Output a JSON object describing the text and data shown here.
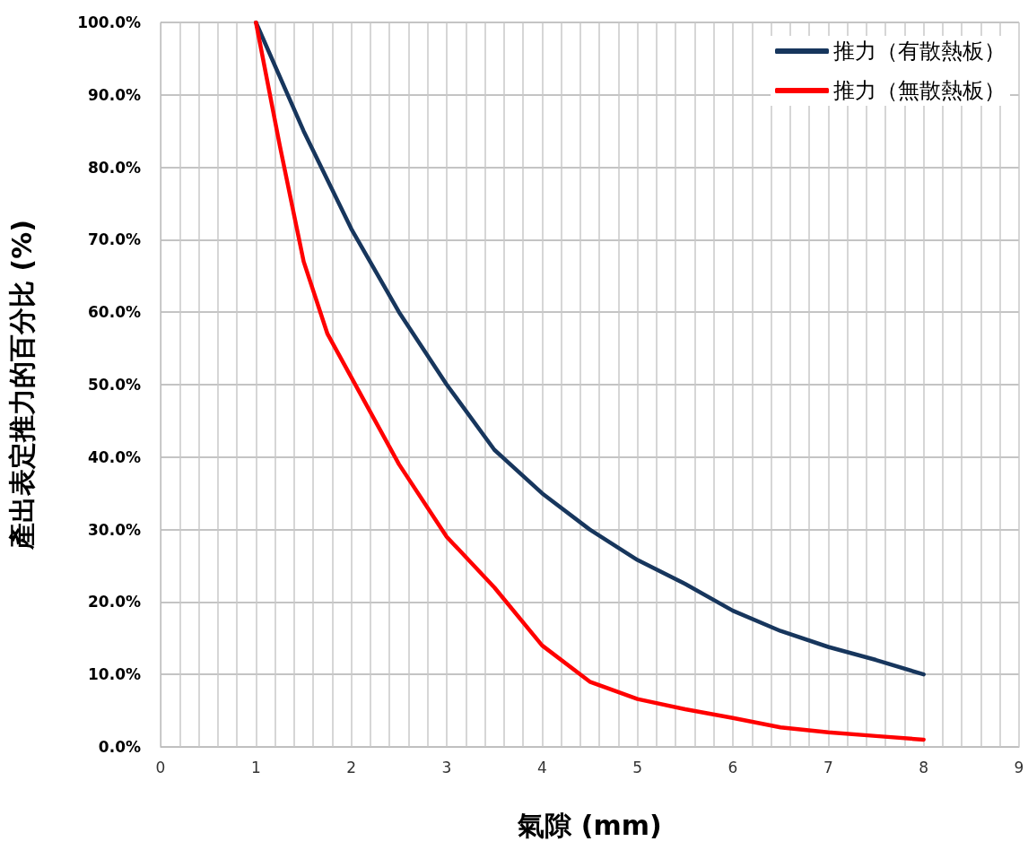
{
  "chart_data": {
    "type": "line",
    "xlabel": "氣隙 (mm)",
    "ylabel": "產出表定推力的百分比 (%)",
    "xlim": [
      0,
      9
    ],
    "ylim": [
      0,
      100
    ],
    "xticks": [
      0,
      {
        "value": 0.2,
        "label": null
      },
      {
        "value": 0.4,
        "label": null
      },
      {
        "value": 0.6,
        "label": null
      },
      {
        "value": 0.8,
        "label": null
      },
      1,
      {
        "value": 1.2,
        "label": null
      },
      {
        "value": 1.4,
        "label": null
      },
      {
        "value": 1.6,
        "label": null
      },
      {
        "value": 1.8,
        "label": null
      },
      2,
      {
        "value": 2.2,
        "label": null
      },
      {
        "value": 2.4,
        "label": null
      },
      {
        "value": 2.6,
        "label": null
      },
      {
        "value": 2.8,
        "label": null
      },
      3,
      {
        "value": 3.2,
        "label": null
      },
      {
        "value": 3.4,
        "label": null
      },
      {
        "value": 3.6,
        "label": null
      },
      {
        "value": 3.8,
        "label": null
      },
      4,
      {
        "value": 4.2,
        "label": null
      },
      {
        "value": 4.4,
        "label": null
      },
      {
        "value": 4.6,
        "label": null
      },
      {
        "value": 4.8,
        "label": null
      },
      5,
      {
        "value": 5.2,
        "label": null
      },
      {
        "value": 5.4,
        "label": null
      },
      {
        "value": 5.6,
        "label": null
      },
      {
        "value": 5.8,
        "label": null
      },
      6,
      {
        "value": 6.2,
        "label": null
      },
      {
        "value": 6.4,
        "label": null
      },
      {
        "value": 6.6,
        "label": null
      },
      {
        "value": 6.8,
        "label": null
      },
      7,
      {
        "value": 7.2,
        "label": null
      },
      {
        "value": 7.4,
        "label": null
      },
      {
        "value": 7.6,
        "label": null
      },
      {
        "value": 7.8,
        "label": null
      },
      8,
      {
        "value": 8.2,
        "label": null
      },
      {
        "value": 8.4,
        "label": null
      },
      {
        "value": 8.6,
        "label": null
      },
      {
        "value": 8.8,
        "label": null
      },
      9
    ],
    "yticks": [
      {
        "value": 0,
        "label": "0.0%"
      },
      {
        "value": 10,
        "label": "10.0%"
      },
      {
        "value": 20,
        "label": "20.0%"
      },
      {
        "value": 30,
        "label": "30.0%"
      },
      {
        "value": 40,
        "label": "40.0%"
      },
      {
        "value": 50,
        "label": "50.0%"
      },
      {
        "value": 60,
        "label": "60.0%"
      },
      {
        "value": 70,
        "label": "70.0%"
      },
      {
        "value": 80,
        "label": "80.0%"
      },
      {
        "value": 90,
        "label": "90.0%"
      },
      {
        "value": 100,
        "label": "100.0%"
      }
    ],
    "grid": true,
    "legend": "top right",
    "marker": "none",
    "line_style": "solid",
    "series": [
      {
        "name": "推力（有散熱板）",
        "color": "#17365d",
        "x": [
          1,
          1.5,
          2,
          2.5,
          3,
          3.5,
          4,
          4.5,
          5,
          5.5,
          6,
          6.5,
          7,
          7.5,
          8
        ],
        "values": [
          100,
          85,
          71.5,
          60,
          50,
          41,
          35,
          30,
          25.8,
          22.5,
          18.8,
          16,
          13.8,
          12,
          10
        ]
      },
      {
        "name": "推力（無散熱板）",
        "color": "#ff0000",
        "x": [
          1,
          1.25,
          1.5,
          1.75,
          2,
          2.5,
          3,
          3.5,
          4,
          4.5,
          5,
          5.5,
          6,
          6.5,
          7,
          7.5,
          8
        ],
        "values": [
          100,
          83,
          67,
          57,
          51,
          39,
          29,
          22,
          14,
          9,
          6.6,
          5.2,
          4,
          2.7,
          2,
          1.5,
          1
        ]
      }
    ]
  }
}
